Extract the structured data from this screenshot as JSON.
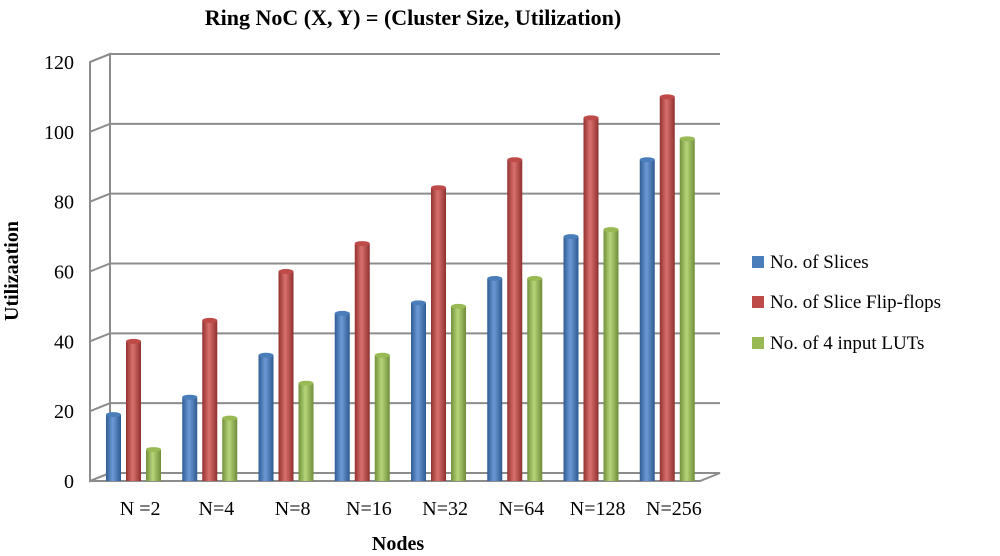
{
  "chart_data": {
    "type": "bar",
    "title": "Ring NoC (X, Y) = (Cluster Size,  Utilization)",
    "xlabel": "Nodes",
    "ylabel": "Utilizaation",
    "categories": [
      "N =2",
      "N=4",
      "N=8",
      "N=16",
      "N=32",
      "N=64",
      "N=128",
      "N=256"
    ],
    "ylim": [
      0,
      120
    ],
    "yticks": [
      0,
      20,
      40,
      60,
      80,
      100,
      120
    ],
    "grid": true,
    "legend_position": "right",
    "series": [
      {
        "name": "No. of Slices",
        "color": "#4a7ebb",
        "values": [
          19,
          24,
          36,
          48,
          51,
          58,
          70,
          92
        ]
      },
      {
        "name": "No. of Slice Flip-flops",
        "color": "#be4b48",
        "values": [
          40,
          46,
          60,
          68,
          84,
          92,
          104,
          110
        ]
      },
      {
        "name": "No. of 4 input LUTs",
        "color": "#98b954",
        "values": [
          9,
          18,
          28,
          36,
          50,
          58,
          72,
          98
        ]
      }
    ]
  }
}
